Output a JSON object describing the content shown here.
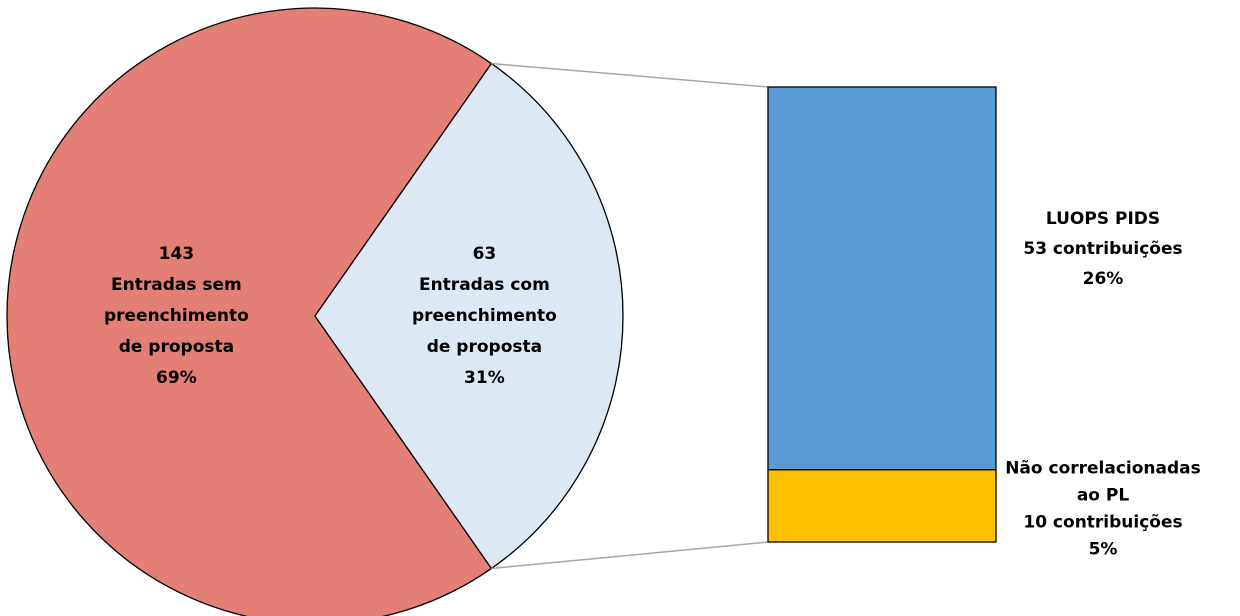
{
  "chart_data": {
    "type": "pie",
    "values": [
      143,
      63
    ],
    "labels": [
      [
        "Entradas sem",
        "preenchimento",
        "de proposta"
      ],
      [
        "Entradas com",
        "preenchimento",
        "de proposta"
      ]
    ],
    "percents": [
      69,
      31
    ],
    "percent_labels": [
      "69%",
      "31%"
    ],
    "colors": [
      "#e37f74",
      "#dde8f5"
    ],
    "breakdown": {
      "type": "bar",
      "of_slice": 1,
      "categories": [
        [
          "LUOPS PIDS"
        ],
        [
          "Não correlacionadas",
          "ao PL"
        ]
      ],
      "values": [
        53,
        10
      ],
      "value_labels": [
        "53 contribuições",
        "10 contribuições"
      ],
      "percents": [
        26,
        5
      ],
      "percent_labels": [
        "26%",
        "5%"
      ],
      "colors": [
        "#5b9bd5",
        "#ffc000"
      ]
    }
  }
}
